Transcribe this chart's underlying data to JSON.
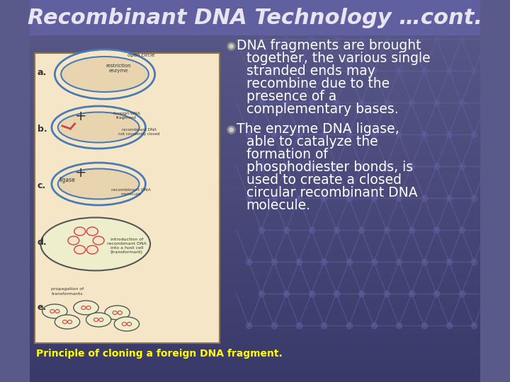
{
  "title": "Recombinant DNA Technology …cont.",
  "title_color": "#e8e4f0",
  "title_fontsize": 22,
  "title_style": "italic",
  "title_weight": "bold",
  "bg_color_top": "#5a5a8a",
  "bg_color_bottom": "#3a3a6a",
  "bullet1_text": [
    "DNA fragments are brought",
    "together, the various single",
    "stranded ends may",
    "recombine due to the",
    "presence of a",
    "complementary bases."
  ],
  "bullet2_text": [
    "The enzyme DNA ligase,",
    "able to catalyze the",
    "formation of",
    "phosphodiester bonds, is",
    "used to create a closed",
    "circular recombinant DNA",
    "molecule."
  ],
  "bullet_color": "#ffffff",
  "bullet_fontsize": 13.5,
  "caption_text": "Principle of cloning a foreign DNA fragment.",
  "caption_color": "#ffff00",
  "caption_fontsize": 10,
  "image_box_color": "#f5e6c8",
  "image_box_border": "#8b7355"
}
